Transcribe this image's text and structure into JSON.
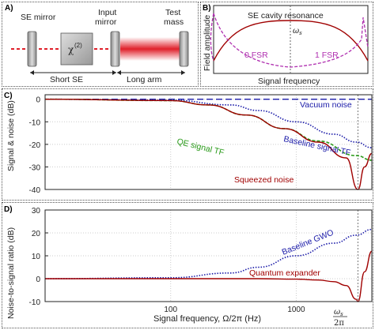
{
  "panels": {
    "a": {
      "letter": "A)",
      "se_mirror": "SE mirror",
      "input_mirror_1": "Input",
      "input_mirror_2": "mirror",
      "test_mass_1": "Test",
      "test_mass_2": "mass",
      "chi": "χ",
      "chi_sup": "(2)",
      "short_se": "Short SE",
      "long_arm": "Long arm"
    },
    "b": {
      "letter": "B)",
      "ylabel": "Field amplitude",
      "xlabel": "Signal frequency",
      "resonance_label": "SE cavity resonance",
      "omega_label": "ω",
      "omega_sub": "s",
      "fsr0": "0 FSR",
      "fsr1": "1 FSR"
    },
    "c": {
      "letter": "C)",
      "ylabel": "Signal & noise (dB)",
      "yticks": [
        "0",
        "-10",
        "-20",
        "-30",
        "-40"
      ],
      "legend": {
        "vacuum": "Vacuum noise",
        "baseline": "Baseline signal TF",
        "qe": "QE signal TF",
        "squeezed": "Squeezed noise"
      }
    },
    "d": {
      "letter": "D)",
      "ylabel": "Noise-to-signal ratio (dB)",
      "yticks": [
        "30",
        "20",
        "10",
        "0",
        "-10"
      ],
      "xticks": [
        "100",
        "1000"
      ],
      "xlabel": "Signal frequency, Ω/2π (Hz)",
      "omega_num": "ω",
      "omega_sub": "s",
      "omega_den": "2π",
      "legend": {
        "baseline": "Baseline GWO",
        "expander": "Quantum expander"
      }
    }
  },
  "colors": {
    "dark_red": "#a00000",
    "navy": "#1a1aa8",
    "green": "#2a9a1a",
    "magenta": "#b030b0",
    "laser_red": "#e0202a"
  },
  "chart_data": [
    {
      "panel": "C",
      "type": "line",
      "xscale": "log",
      "xlim": [
        10,
        4000
      ],
      "ylim": [
        -40,
        2
      ],
      "ylabel": "Signal & noise (dB)",
      "series": [
        {
          "name": "Vacuum noise",
          "x": [
            10,
            100,
            1000,
            4000
          ],
          "y": [
            0,
            0,
            0,
            0
          ]
        },
        {
          "name": "Baseline signal TF",
          "x": [
            10,
            100,
            300,
            500,
            1000,
            2000,
            3000,
            4000
          ],
          "y": [
            0,
            -0.4,
            -2.5,
            -5,
            -10,
            -15.5,
            -19,
            -21.5
          ]
        },
        {
          "name": "QE signal TF",
          "x": [
            10,
            100,
            200,
            400,
            800,
            1500,
            3000,
            4000
          ],
          "y": [
            0,
            -0.6,
            -2.5,
            -7,
            -13,
            -18.5,
            -25,
            -27
          ]
        },
        {
          "name": "Squeezed noise",
          "x": [
            10,
            100,
            200,
            400,
            800,
            1500,
            2500,
            3100,
            3500,
            4000
          ],
          "y": [
            0,
            -0.6,
            -2.5,
            -7,
            -13,
            -19,
            -26,
            -40,
            -30,
            -24
          ]
        }
      ]
    },
    {
      "panel": "D",
      "type": "line",
      "xscale": "log",
      "xlim": [
        10,
        4000
      ],
      "ylim": [
        -10,
        30
      ],
      "ylabel": "Noise-to-signal ratio (dB)",
      "xlabel": "Signal frequency, Ω/2π (Hz)",
      "series": [
        {
          "name": "Baseline GWO",
          "x": [
            10,
            100,
            300,
            500,
            1000,
            2000,
            3000,
            4000
          ],
          "y": [
            0,
            0.4,
            2.5,
            5,
            10,
            15.5,
            19,
            21.5
          ]
        },
        {
          "name": "Quantum expander",
          "x": [
            10,
            100,
            500,
            1000,
            1500,
            2000,
            2500,
            3000,
            3100,
            3500,
            4000
          ],
          "y": [
            0,
            0,
            0,
            -0.2,
            -0.6,
            -1.3,
            -3,
            -9,
            -10,
            3,
            12
          ]
        }
      ]
    }
  ]
}
